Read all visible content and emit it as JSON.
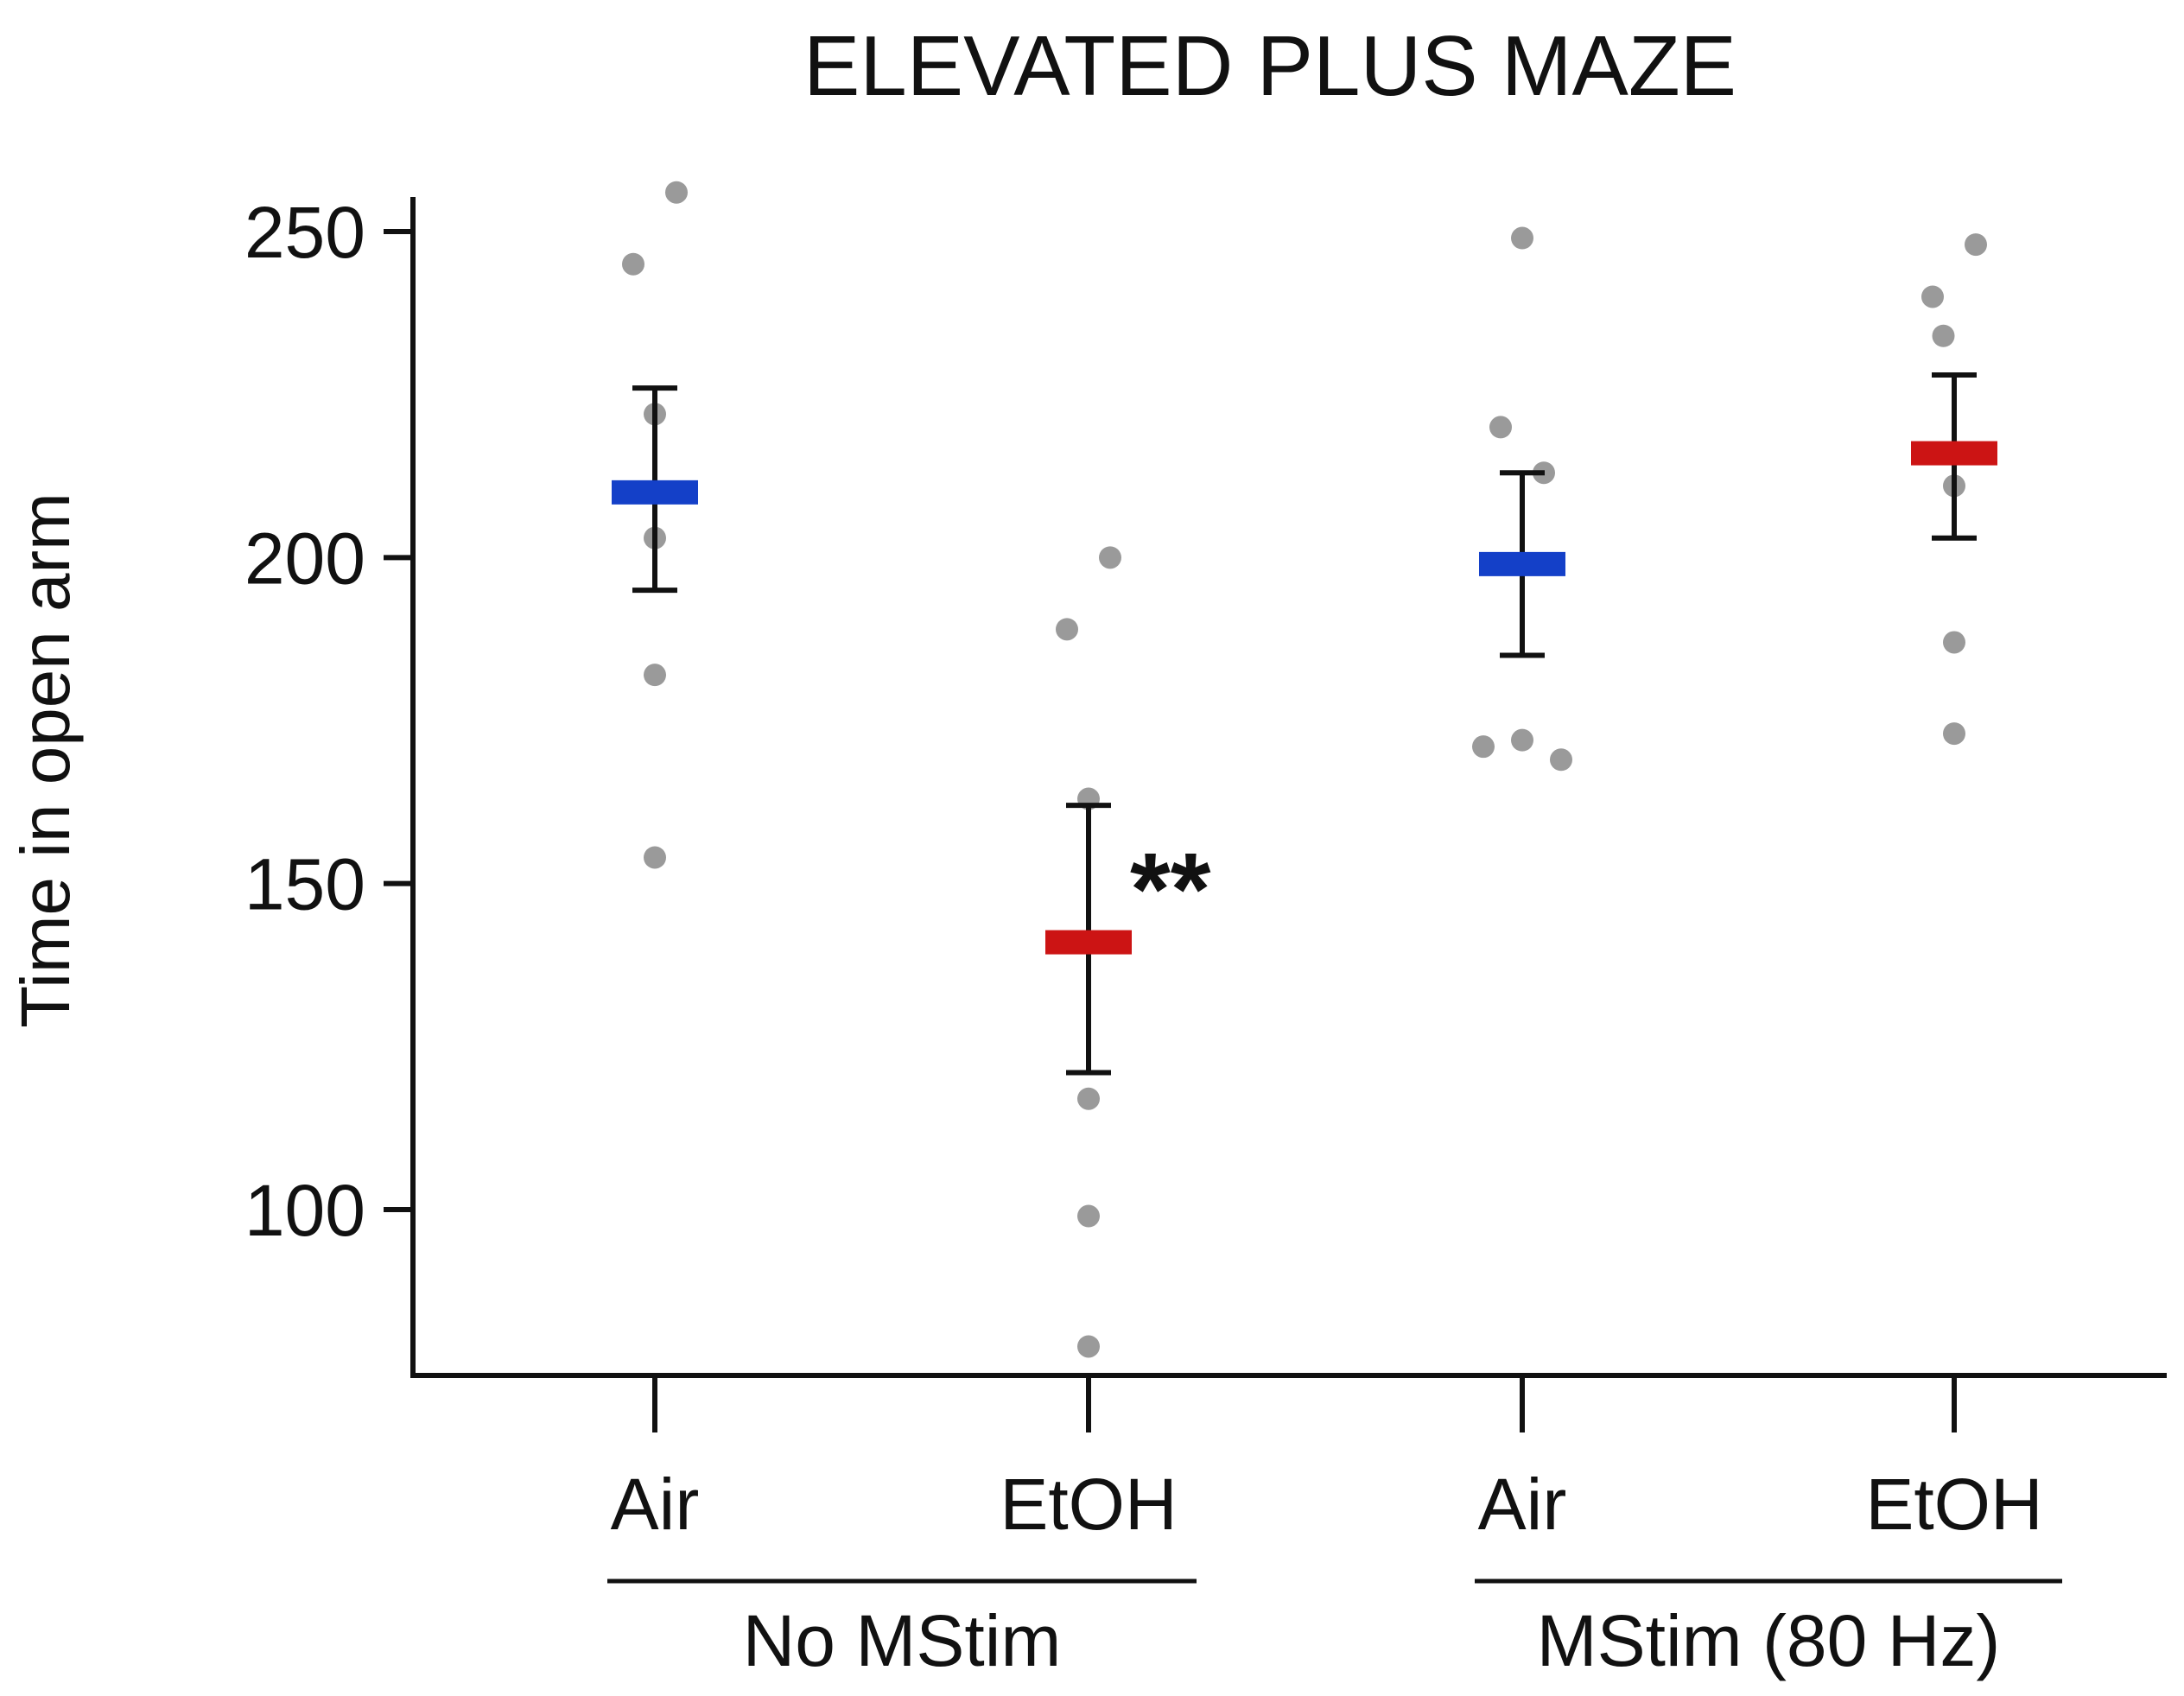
{
  "chart_data": {
    "type": "scatter",
    "title": "ELEVATED PLUS MAZE",
    "ylabel": "Time in open arm",
    "xlabel": "",
    "ylim": [
      75,
      258
    ],
    "yticks": [
      100,
      150,
      200,
      250
    ],
    "categories": [
      "Air",
      "EtOH",
      "Air",
      "EtOH"
    ],
    "groups": [
      {
        "label": "No MStim",
        "members": [
          0,
          1
        ]
      },
      {
        "label": "MStim (80 Hz)",
        "members": [
          2,
          3
        ]
      }
    ],
    "series": [
      {
        "name": "Air",
        "group": "No MStim",
        "mean": 210,
        "sem_low": 195,
        "sem_high": 226,
        "mean_color": "#1440c8",
        "points": [
          {
            "y": 256,
            "jitter": 0.1
          },
          {
            "y": 245,
            "jitter": -0.1
          },
          {
            "y": 222,
            "jitter": 0
          },
          {
            "y": 203,
            "jitter": 0
          },
          {
            "y": 182,
            "jitter": 0
          },
          {
            "y": 154,
            "jitter": 0
          }
        ]
      },
      {
        "name": "EtOH",
        "group": "No MStim",
        "mean": 141,
        "sem_low": 121,
        "sem_high": 162,
        "mean_color": "#cc1414",
        "annotation": "**",
        "points": [
          {
            "y": 200,
            "jitter": 0.1
          },
          {
            "y": 189,
            "jitter": -0.1
          },
          {
            "y": 163,
            "jitter": 0
          },
          {
            "y": 117,
            "jitter": 0
          },
          {
            "y": 99,
            "jitter": 0
          },
          {
            "y": 79,
            "jitter": 0
          }
        ]
      },
      {
        "name": "Air",
        "group": "MStim (80 Hz)",
        "mean": 199,
        "sem_low": 185,
        "sem_high": 213,
        "mean_color": "#1440c8",
        "points": [
          {
            "y": 249,
            "jitter": 0
          },
          {
            "y": 220,
            "jitter": -0.1
          },
          {
            "y": 213,
            "jitter": 0.1
          },
          {
            "y": 171,
            "jitter": -0.18
          },
          {
            "y": 172,
            "jitter": 0
          },
          {
            "y": 169,
            "jitter": 0.18
          }
        ]
      },
      {
        "name": "EtOH",
        "group": "MStim (80 Hz)",
        "mean": 216,
        "sem_low": 203,
        "sem_high": 228,
        "mean_color": "#cc1414",
        "points": [
          {
            "y": 248,
            "jitter": 0.1
          },
          {
            "y": 240,
            "jitter": -0.1
          },
          {
            "y": 234,
            "jitter": -0.05
          },
          {
            "y": 211,
            "jitter": 0
          },
          {
            "y": 187,
            "jitter": 0
          },
          {
            "y": 173,
            "jitter": 0
          }
        ]
      }
    ],
    "point_color": "#9a9a9a",
    "axis_color": "#111111"
  }
}
